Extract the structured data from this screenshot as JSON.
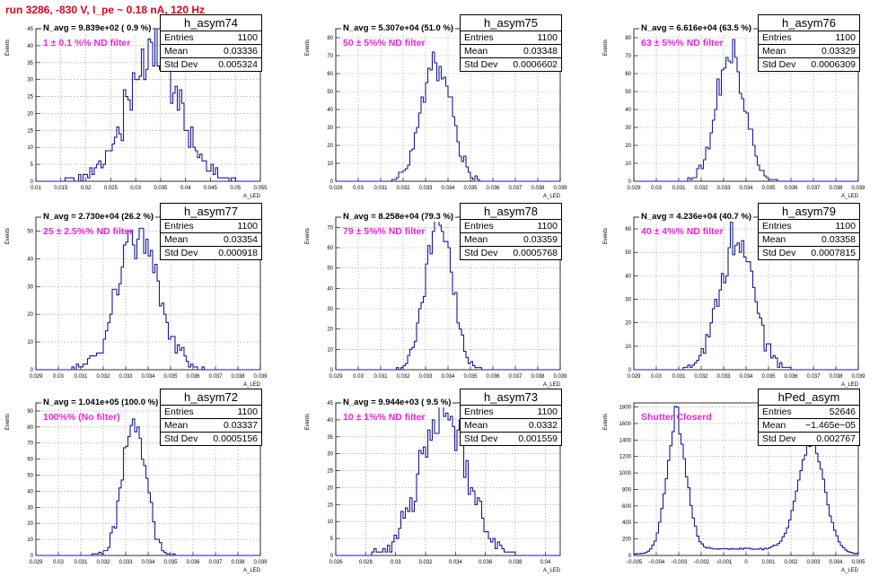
{
  "header": {
    "title": "run 3286,  -830 V, I_pe ~ 0.18 nA, 120 Hz"
  },
  "common": {
    "entries_label": "Entries",
    "mean_label": "Mean",
    "std_label": "Std Dev",
    "ylabel": "Events",
    "xlabel": "A_LED",
    "hist_color": "#1a1a99"
  },
  "chart_data": [
    {
      "type": "bar",
      "title": "h_asym74",
      "entries": "1100",
      "mean": "0.03336",
      "std": "0.005324",
      "navg": "N_avg = 9.839e+02 ( 0.9 %)",
      "filter": "1 ± 0.1 %% ND filter",
      "xlim": [
        0.01,
        0.055
      ],
      "ylim": [
        0,
        45
      ],
      "mu": 0.0334,
      "sigma": 0.0053,
      "xticks": [
        "0.01",
        "0.015",
        "0.02",
        "0.025",
        "0.03",
        "0.035",
        "0.04",
        "0.045",
        "0.05",
        "0.055"
      ],
      "yticks": [
        "0",
        "5",
        "10",
        "15",
        "20",
        "25",
        "30",
        "35",
        "40",
        "45"
      ]
    },
    {
      "type": "bar",
      "title": "h_asym75",
      "entries": "1100",
      "mean": "0.03348",
      "std": "0.0006602",
      "navg": "N_avg = 5.307e+04 (51.0 %)",
      "filter": "50 ± 5%% ND filter",
      "xlim": [
        0.029,
        0.039
      ],
      "ylim": [
        0,
        85
      ],
      "mu": 0.03348,
      "sigma": 0.00066,
      "xticks": [
        "0.029",
        "0.03",
        "0.031",
        "0.032",
        "0.033",
        "0.034",
        "0.035",
        "0.036",
        "0.037",
        "0.038",
        "0.039"
      ],
      "yticks": [
        "0",
        "10",
        "20",
        "30",
        "40",
        "50",
        "60",
        "70",
        "80"
      ]
    },
    {
      "type": "bar",
      "title": "h_asym76",
      "entries": "1100",
      "mean": "0.03329",
      "std": "0.0006309",
      "navg": "N_avg = 6.616e+04 (63.5 %)",
      "filter": "63 ± 5%% ND filter",
      "xlim": [
        0.029,
        0.039
      ],
      "ylim": [
        0,
        85
      ],
      "mu": 0.03329,
      "sigma": 0.00063,
      "xticks": [
        "0.029",
        "0.03",
        "0.031",
        "0.032",
        "0.033",
        "0.034",
        "0.035",
        "0.036",
        "0.037",
        "0.038",
        "0.039"
      ],
      "yticks": [
        "0",
        "10",
        "20",
        "30",
        "40",
        "50",
        "60",
        "70",
        "80"
      ]
    },
    {
      "type": "bar",
      "title": "h_asym77",
      "entries": "1100",
      "mean": "0.03354",
      "std": "0.000918",
      "navg": "N_avg = 2.730e+04 (26.2 %)",
      "filter": "25 ± 2.5%% ND filter",
      "xlim": [
        0.029,
        0.039
      ],
      "ylim": [
        0,
        55
      ],
      "mu": 0.03354,
      "sigma": 0.00092,
      "xticks": [
        "0.029",
        "0.03",
        "0.031",
        "0.032",
        "0.033",
        "0.034",
        "0.035",
        "0.036",
        "0.037",
        "0.038",
        "0.039"
      ],
      "yticks": [
        "0",
        "10",
        "20",
        "30",
        "40",
        "50"
      ]
    },
    {
      "type": "bar",
      "title": "h_asym78",
      "entries": "1100",
      "mean": "0.03359",
      "std": "0.0005768",
      "navg": "N_avg = 8.258e+04 (79.3 %)",
      "filter": "79 ± 5%% ND filter",
      "xlim": [
        0.029,
        0.039
      ],
      "ylim": [
        0,
        75
      ],
      "mu": 0.03359,
      "sigma": 0.00058,
      "xticks": [
        "0.029",
        "0.03",
        "0.031",
        "0.032",
        "0.033",
        "0.034",
        "0.035",
        "0.036",
        "0.037",
        "0.038",
        "0.039"
      ],
      "yticks": [
        "0",
        "10",
        "20",
        "30",
        "40",
        "50",
        "60",
        "70"
      ]
    },
    {
      "type": "bar",
      "title": "h_asym79",
      "entries": "1100",
      "mean": "0.03358",
      "std": "0.0007815",
      "navg": "N_avg = 4.236e+04 (40.7 %)",
      "filter": "40 ± 4%% ND filter",
      "xlim": [
        0.029,
        0.039
      ],
      "ylim": [
        0,
        65
      ],
      "mu": 0.03358,
      "sigma": 0.00078,
      "xticks": [
        "0.029",
        "0.03",
        "0.031",
        "0.032",
        "0.033",
        "0.034",
        "0.035",
        "0.036",
        "0.037",
        "0.038",
        "0.039"
      ],
      "yticks": [
        "0",
        "10",
        "20",
        "30",
        "40",
        "50",
        "60"
      ]
    },
    {
      "type": "bar",
      "title": "h_asym72",
      "entries": "1100",
      "mean": "0.03337",
      "std": "0.0005156",
      "navg": "N_avg = 1.041e+05 (100.0 %)",
      "filter": "100%% (No filter)",
      "xlim": [
        0.029,
        0.039
      ],
      "ylim": [
        0,
        95
      ],
      "mu": 0.03337,
      "sigma": 0.00052,
      "xticks": [
        "0.029",
        "0.03",
        "0.031",
        "0.032",
        "0.033",
        "0.034",
        "0.035",
        "0.036",
        "0.037",
        "0.038",
        "0.039"
      ],
      "yticks": [
        "0",
        "10",
        "20",
        "30",
        "40",
        "50",
        "60",
        "70",
        "80",
        "90"
      ]
    },
    {
      "type": "bar",
      "title": "h_asym73",
      "entries": "1100",
      "mean": "0.0332",
      "std": "0.001559",
      "navg": "N_avg = 9.944e+03 ( 9.5 %)",
      "filter": "10 ± 1%% ND filter",
      "xlim": [
        0.026,
        0.041
      ],
      "ylim": [
        0,
        45
      ],
      "mu": 0.0332,
      "sigma": 0.00156,
      "xticks": [
        "0.026",
        "0.028",
        "0.03",
        "0.032",
        "0.034",
        "0.036",
        "0.038",
        "0.04"
      ],
      "yticks": [
        "0",
        "5",
        "10",
        "15",
        "20",
        "25",
        "30",
        "35",
        "40",
        "45"
      ]
    },
    {
      "type": "bar",
      "title": "hPed_asym",
      "entries": "52646",
      "mean": "−1.465e−05",
      "std": "0.002767",
      "navg": "",
      "filter": "Shutter Closerd",
      "xlim": [
        -0.005,
        0.005
      ],
      "ylim": [
        0,
        1850
      ],
      "bimodal": true,
      "xticks": [
        "−0.005",
        "−0.004",
        "−0.003",
        "−0.002",
        "−0.001",
        "0",
        "0.001",
        "0.002",
        "0.003",
        "0.004",
        "0.005"
      ],
      "yticks": [
        "0",
        "200",
        "400",
        "600",
        "800",
        "1000",
        "1200",
        "1400",
        "1600",
        "1800"
      ]
    }
  ]
}
